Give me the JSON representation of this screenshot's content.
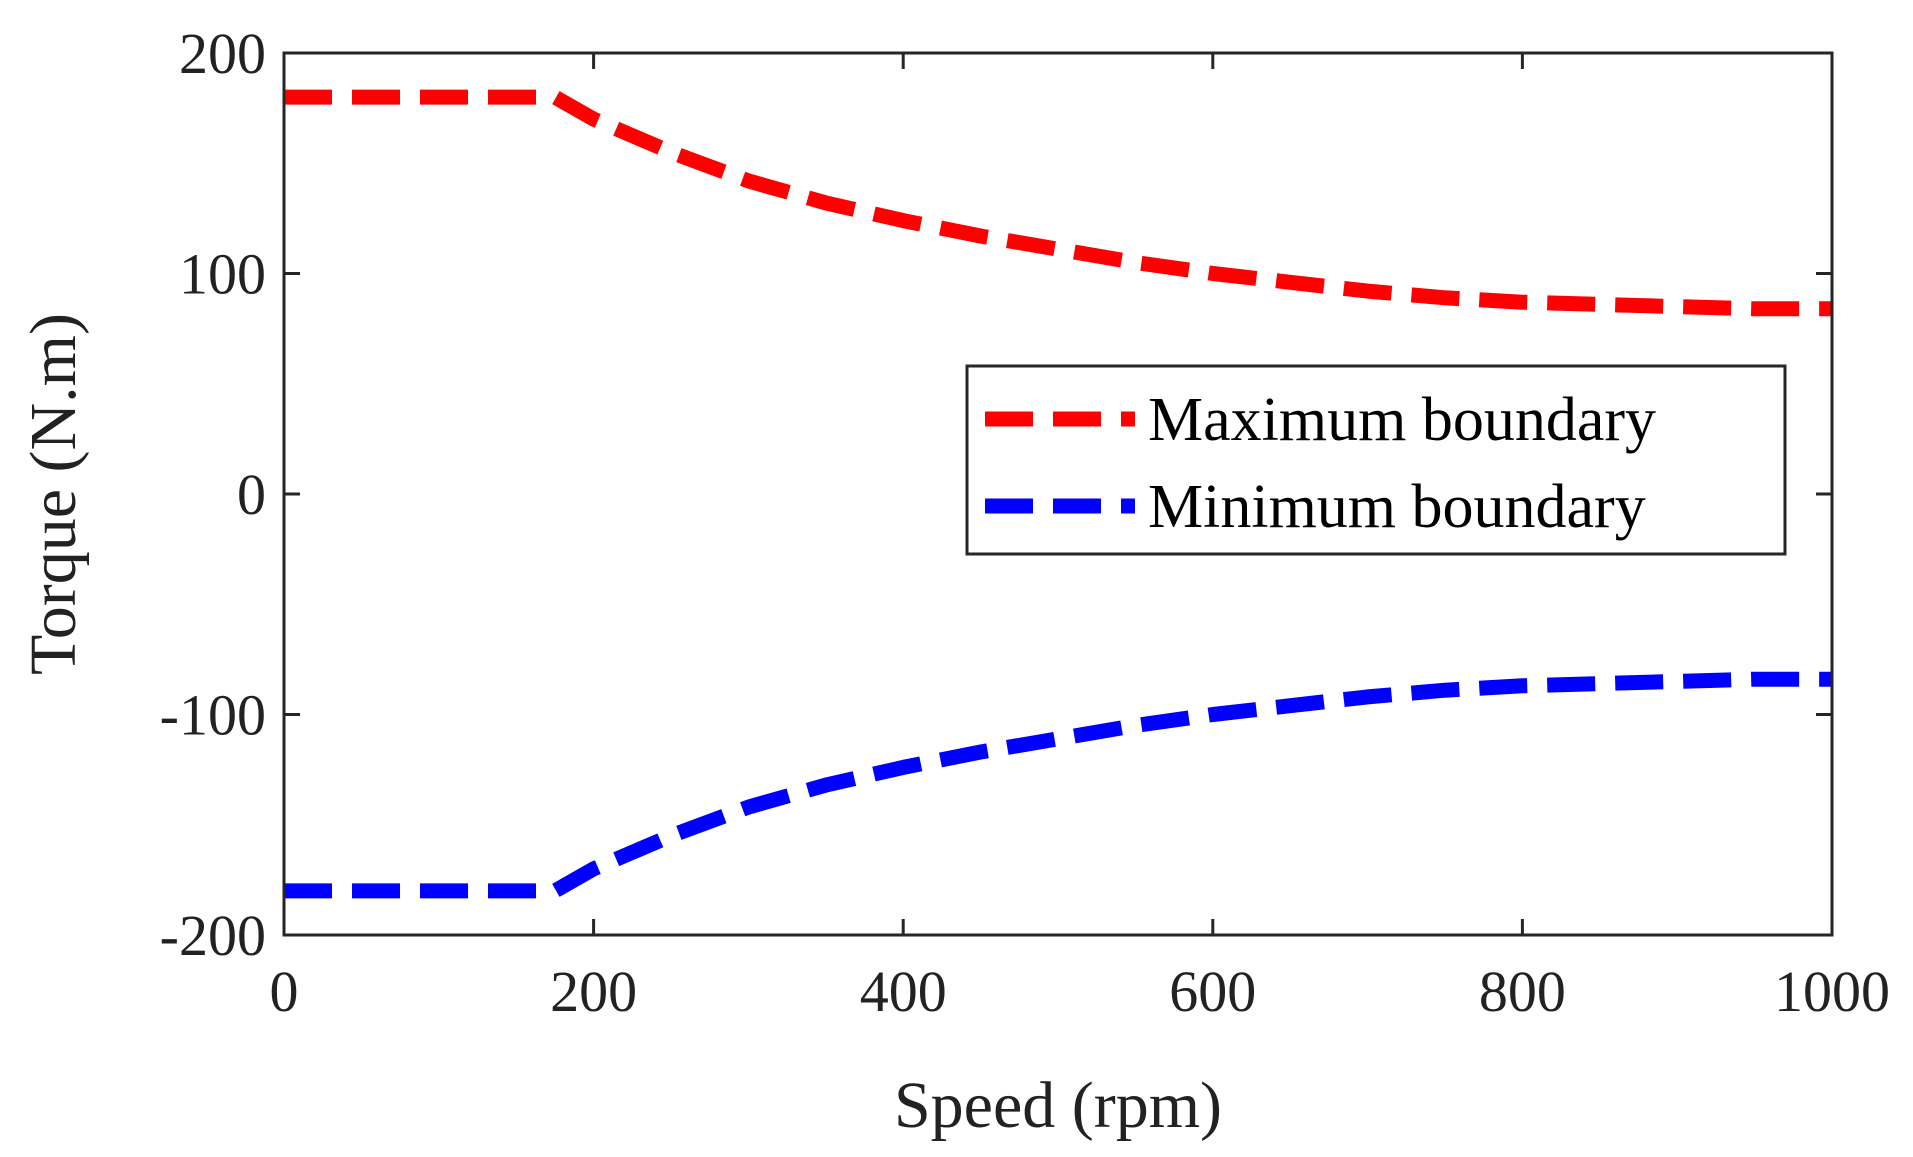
{
  "chart_data": {
    "type": "line",
    "title": "",
    "xlabel": "Speed (rpm)",
    "ylabel": "Torque (N.m)",
    "xlim": [
      0,
      1000
    ],
    "ylim": [
      -200,
      200
    ],
    "xticks": [
      0,
      200,
      400,
      600,
      800,
      1000
    ],
    "yticks": [
      -200,
      -100,
      0,
      100,
      200
    ],
    "xtick_labels": [
      "0",
      "200",
      "400",
      "600",
      "800",
      "1000"
    ],
    "ytick_labels": [
      "-200",
      "-100",
      "0",
      "100",
      "200"
    ],
    "grid": false,
    "legend_position": "center-right",
    "x": [
      0,
      175,
      200,
      250,
      300,
      350,
      400,
      450,
      500,
      550,
      600,
      650,
      700,
      750,
      800,
      850,
      900,
      950,
      1000
    ],
    "series": [
      {
        "name": "Maximum boundary",
        "color": "#ff0000",
        "style": "dashed",
        "values": [
          180,
          180,
          170,
          155,
          142,
          132,
          124,
          117,
          111,
          105,
          100,
          96,
          92,
          89,
          87,
          86,
          85,
          84,
          84
        ]
      },
      {
        "name": "Minimum boundary",
        "color": "#0000ff",
        "style": "dashed",
        "values": [
          -180,
          -180,
          -170,
          -155,
          -142,
          -132,
          -124,
          -117,
          -111,
          -105,
          -100,
          -96,
          -92,
          -89,
          -87,
          -86,
          -85,
          -84,
          -84
        ]
      }
    ]
  }
}
